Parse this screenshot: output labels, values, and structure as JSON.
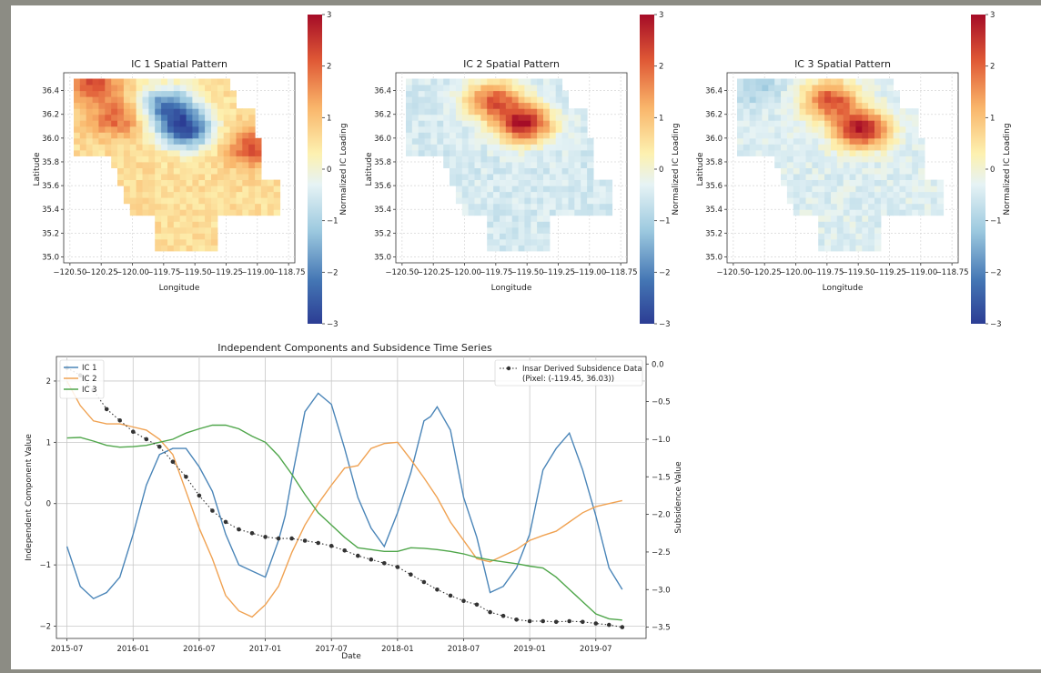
{
  "colors": {
    "ic1": "#4a85b8",
    "ic2": "#f0a252",
    "ic3": "#4fa64a",
    "subsidence": "#333333",
    "colormap": [
      "#2c3d94",
      "#4476b4",
      "#9cc9df",
      "#e6f3f5",
      "#fdf1b0",
      "#f9b56a",
      "#e05a36",
      "#a50c27"
    ]
  },
  "maps": [
    {
      "title": "IC 1 Spatial Pattern",
      "xlabel": "Longitude",
      "ylabel": "Latitude",
      "xticks": [
        "−120.50",
        "−120.25",
        "−120.00",
        "−119.75",
        "−119.50",
        "−119.25",
        "−119.00",
        "−118.75"
      ],
      "yticks": [
        "36.4",
        "36.2",
        "36.0",
        "35.8",
        "35.6",
        "35.4",
        "35.2",
        "35.0"
      ],
      "colorbar_label": "Normalized IC Loading",
      "colorbar_ticks": [
        "3",
        "2",
        "1",
        "0",
        "−1",
        "−2",
        "−3"
      ]
    },
    {
      "title": "IC 2 Spatial Pattern",
      "xlabel": "Longitude",
      "ylabel": "Latitude",
      "xticks": [
        "−120.50",
        "−120.25",
        "−120.00",
        "−119.75",
        "−119.50",
        "−119.25",
        "−119.00",
        "−118.75"
      ],
      "yticks": [
        "36.4",
        "36.2",
        "36.0",
        "35.8",
        "35.6",
        "35.4",
        "35.2",
        "35.0"
      ],
      "colorbar_label": "Normalized IC Loading",
      "colorbar_ticks": [
        "3",
        "2",
        "1",
        "0",
        "−1",
        "−2",
        "−3"
      ]
    },
    {
      "title": "IC 3 Spatial Pattern",
      "xlabel": "Longitude",
      "ylabel": "Latitude",
      "xticks": [
        "−120.50",
        "−120.25",
        "−120.00",
        "−119.75",
        "−119.50",
        "−119.25",
        "−119.00",
        "−118.75"
      ],
      "yticks": [
        "36.4",
        "36.2",
        "36.0",
        "35.8",
        "35.6",
        "35.4",
        "35.2",
        "35.0"
      ],
      "colorbar_label": "Normalized IC Loading",
      "colorbar_ticks": [
        "3",
        "2",
        "1",
        "0",
        "−1",
        "−2",
        "−3"
      ]
    }
  ],
  "chart_data": [
    {
      "type": "heatmap",
      "title": "IC 1 Spatial Pattern",
      "xlabel": "Longitude",
      "ylabel": "Latitude",
      "xlim": [
        -120.55,
        -118.7
      ],
      "ylim": [
        34.95,
        36.55
      ],
      "zlim": [
        -3,
        3
      ],
      "hotspots": [
        {
          "lon": -119.6,
          "lat": 36.05,
          "value": -2.6
        },
        {
          "lon": -119.75,
          "lat": 36.25,
          "value": -2.0
        },
        {
          "lon": -120.35,
          "lat": 36.45,
          "value": 2.2
        },
        {
          "lon": -120.15,
          "lat": 36.15,
          "value": 2.0
        },
        {
          "lon": -119.05,
          "lat": 35.9,
          "value": 2.2
        }
      ],
      "background_value": 0.6
    },
    {
      "type": "heatmap",
      "title": "IC 2 Spatial Pattern",
      "xlabel": "Longitude",
      "ylabel": "Latitude",
      "xlim": [
        -120.55,
        -118.7
      ],
      "ylim": [
        34.95,
        36.55
      ],
      "zlim": [
        -3,
        3
      ],
      "hotspots": [
        {
          "lon": -119.55,
          "lat": 36.1,
          "value": 2.8
        },
        {
          "lon": -119.8,
          "lat": 36.3,
          "value": 2.0
        }
      ],
      "background_value": -0.5
    },
    {
      "type": "heatmap",
      "title": "IC 3 Spatial Pattern",
      "xlabel": "Longitude",
      "ylabel": "Latitude",
      "xlim": [
        -120.55,
        -118.7
      ],
      "ylim": [
        34.95,
        36.55
      ],
      "zlim": [
        -3,
        3
      ],
      "hotspots": [
        {
          "lon": -119.5,
          "lat": 36.05,
          "value": 2.9
        },
        {
          "lon": -119.75,
          "lat": 36.3,
          "value": 2.2
        },
        {
          "lon": -120.35,
          "lat": 36.4,
          "value": -1.0
        }
      ],
      "background_value": -0.4
    },
    {
      "type": "line",
      "title": "Independent Components and Subsidence Time Series",
      "xlabel": "Date",
      "ylabel": "Independent Component Value",
      "y2label": "Subsidence Value",
      "xticks": [
        "2015-07",
        "2016-01",
        "2016-07",
        "2017-01",
        "2017-07",
        "2018-01",
        "2018-07",
        "2019-01",
        "2019-07"
      ],
      "yticks": [
        "2",
        "1",
        "0",
        "−1",
        "−2"
      ],
      "y2ticks": [
        "0.0",
        "−0.5",
        "−1.0",
        "−1.5",
        "−2.0",
        "−2.5",
        "−3.0",
        "−3.5"
      ],
      "ylim": [
        -2.2,
        2.4
      ],
      "y2lim": [
        -3.65,
        0.1
      ],
      "xlim": [
        2015.42,
        2019.88
      ],
      "legend_left": [
        "IC 1",
        "IC 2",
        "IC 3"
      ],
      "legend_right": [
        "Insar Derived Subsidence Data",
        "(Pixel: (-119.45, 36.03))"
      ],
      "series": [
        {
          "name": "IC 1",
          "x": [
            2015.5,
            2015.6,
            2015.7,
            2015.8,
            2015.9,
            2016.0,
            2016.1,
            2016.2,
            2016.3,
            2016.4,
            2016.5,
            2016.6,
            2016.7,
            2016.8,
            2016.9,
            2017.0,
            2017.1,
            2017.15,
            2017.2,
            2017.3,
            2017.4,
            2017.5,
            2017.6,
            2017.7,
            2017.8,
            2017.9,
            2018.0,
            2018.1,
            2018.2,
            2018.25,
            2018.3,
            2018.4,
            2018.5,
            2018.6,
            2018.7,
            2018.8,
            2018.9,
            2019.0,
            2019.1,
            2019.2,
            2019.3,
            2019.4,
            2019.5,
            2019.6,
            2019.7
          ],
          "values": [
            -0.7,
            -1.35,
            -1.55,
            -1.45,
            -1.2,
            -0.5,
            0.3,
            0.8,
            0.9,
            0.9,
            0.6,
            0.2,
            -0.5,
            -1.0,
            -1.1,
            -1.2,
            -0.6,
            -0.2,
            0.4,
            1.5,
            1.8,
            1.62,
            0.9,
            0.1,
            -0.4,
            -0.7,
            -0.15,
            0.5,
            1.35,
            1.42,
            1.58,
            1.2,
            0.1,
            -0.55,
            -1.45,
            -1.35,
            -1.05,
            -0.5,
            0.55,
            0.9,
            1.15,
            0.55,
            -0.2,
            -1.05,
            -1.4
          ]
        },
        {
          "name": "IC 2",
          "x": [
            2015.5,
            2015.6,
            2015.7,
            2015.8,
            2015.9,
            2016.0,
            2016.1,
            2016.2,
            2016.3,
            2016.4,
            2016.5,
            2016.6,
            2016.7,
            2016.8,
            2016.9,
            2017.0,
            2017.1,
            2017.2,
            2017.3,
            2017.4,
            2017.5,
            2017.6,
            2017.7,
            2017.8,
            2017.9,
            2018.0,
            2018.1,
            2018.2,
            2018.3,
            2018.4,
            2018.5,
            2018.6,
            2018.7,
            2018.8,
            2018.9,
            2019.0,
            2019.1,
            2019.2,
            2019.3,
            2019.4,
            2019.5,
            2019.6,
            2019.7
          ],
          "values": [
            2.0,
            1.6,
            1.35,
            1.3,
            1.3,
            1.25,
            1.2,
            1.05,
            0.8,
            0.2,
            -0.4,
            -0.9,
            -1.5,
            -1.75,
            -1.85,
            -1.65,
            -1.35,
            -0.8,
            -0.35,
            0.0,
            0.3,
            0.58,
            0.62,
            0.9,
            0.98,
            1.0,
            0.72,
            0.42,
            0.1,
            -0.3,
            -0.6,
            -0.9,
            -0.95,
            -0.85,
            -0.75,
            -0.6,
            -0.52,
            -0.45,
            -0.3,
            -0.15,
            -0.05,
            0.0,
            0.05
          ]
        },
        {
          "name": "IC 3",
          "x": [
            2015.5,
            2015.6,
            2015.7,
            2015.8,
            2015.9,
            2016.0,
            2016.1,
            2016.2,
            2016.3,
            2016.4,
            2016.5,
            2016.6,
            2016.7,
            2016.8,
            2016.9,
            2017.0,
            2017.1,
            2017.2,
            2017.3,
            2017.4,
            2017.5,
            2017.6,
            2017.7,
            2017.8,
            2017.9,
            2018.0,
            2018.1,
            2018.2,
            2018.3,
            2018.4,
            2018.5,
            2018.6,
            2018.7,
            2018.8,
            2018.9,
            2019.0,
            2019.1,
            2019.2,
            2019.3,
            2019.4,
            2019.5,
            2019.6,
            2019.7
          ],
          "values": [
            1.07,
            1.08,
            1.02,
            0.95,
            0.92,
            0.93,
            0.95,
            1.0,
            1.05,
            1.15,
            1.22,
            1.28,
            1.28,
            1.22,
            1.1,
            1.0,
            0.78,
            0.48,
            0.15,
            -0.15,
            -0.35,
            -0.55,
            -0.72,
            -0.75,
            -0.78,
            -0.78,
            -0.72,
            -0.73,
            -0.75,
            -0.78,
            -0.82,
            -0.88,
            -0.92,
            -0.95,
            -0.98,
            -1.02,
            -1.05,
            -1.2,
            -1.4,
            -1.6,
            -1.8,
            -1.88,
            -1.9
          ]
        },
        {
          "name": "Insar Derived Subsidence Data",
          "axis": "right",
          "x": [
            2015.5,
            2015.6,
            2015.7,
            2015.8,
            2015.9,
            2016.0,
            2016.1,
            2016.2,
            2016.3,
            2016.4,
            2016.5,
            2016.6,
            2016.7,
            2016.8,
            2016.9,
            2017.0,
            2017.1,
            2017.2,
            2017.3,
            2017.4,
            2017.5,
            2017.6,
            2017.7,
            2017.8,
            2017.9,
            2018.0,
            2018.1,
            2018.2,
            2018.3,
            2018.4,
            2018.5,
            2018.6,
            2018.7,
            2018.8,
            2018.9,
            2019.0,
            2019.1,
            2019.2,
            2019.3,
            2019.4,
            2019.5,
            2019.6,
            2019.7
          ],
          "values": [
            -0.05,
            -0.15,
            -0.35,
            -0.6,
            -0.75,
            -0.9,
            -1.0,
            -1.1,
            -1.3,
            -1.5,
            -1.75,
            -1.95,
            -2.1,
            -2.2,
            -2.25,
            -2.3,
            -2.32,
            -2.32,
            -2.35,
            -2.38,
            -2.42,
            -2.48,
            -2.55,
            -2.6,
            -2.65,
            -2.7,
            -2.8,
            -2.9,
            -3.0,
            -3.08,
            -3.15,
            -3.2,
            -3.3,
            -3.35,
            -3.4,
            -3.42,
            -3.42,
            -3.43,
            -3.42,
            -3.43,
            -3.45,
            -3.47,
            -3.5
          ]
        }
      ]
    }
  ]
}
